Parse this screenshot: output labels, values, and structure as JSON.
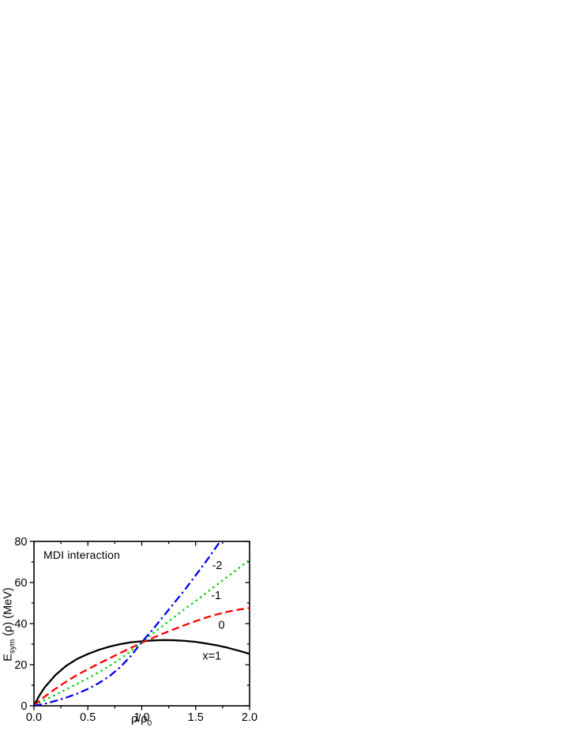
{
  "page": {
    "background": "#ffffff"
  },
  "figure": {
    "title": "MDI interaction",
    "xlabel_main": "ρ/ρ",
    "xlabel_sub": "0",
    "ylabel_main": "E",
    "ylabel_sub": "sym",
    "ylabel_rest": " (ρ) (MeV)"
  },
  "chart_data": {
    "type": "line",
    "title": "MDI interaction",
    "xlabel": "ρ/ρ0",
    "ylabel": "Esym (ρ) (MeV)",
    "xlim": [
      0,
      2
    ],
    "ylim": [
      0,
      80
    ],
    "x_major_ticks": [
      0,
      0.5,
      1,
      1.5,
      2
    ],
    "x_tick_labels": [
      "0.0",
      "0.5",
      "1.0",
      "1.5",
      "2.0"
    ],
    "x_minor_ticks": [
      0.25,
      0.75,
      1.25,
      1.75
    ],
    "y_major_ticks": [
      0,
      20,
      40,
      60,
      80
    ],
    "y_tick_labels": [
      "0",
      "20",
      "40",
      "60",
      "80"
    ],
    "y_minor_ticks": [
      10,
      30,
      50,
      70
    ],
    "grid": false,
    "legend_position": "inline-curve-labels",
    "axis_color": "#000000",
    "series": [
      {
        "name": "x=1",
        "style": "solid",
        "color": "#000000",
        "x": [
          0,
          0.05,
          0.1,
          0.2,
          0.3,
          0.4,
          0.5,
          0.6,
          0.7,
          0.8,
          0.9,
          1.0,
          1.1,
          1.2,
          1.3,
          1.4,
          1.5,
          1.6,
          1.7,
          1.8,
          1.9,
          2.0
        ],
        "y": [
          0,
          5,
          9,
          15,
          19.5,
          22.8,
          25.2,
          27.2,
          28.8,
          30.0,
          30.9,
          31.4,
          31.8,
          32.0,
          31.9,
          31.6,
          31.1,
          30.3,
          29.4,
          28.2,
          26.8,
          25.3
        ]
      },
      {
        "name": "x=0",
        "style": "dashed",
        "color": "#ff0000",
        "x": [
          0,
          0.05,
          0.1,
          0.2,
          0.3,
          0.4,
          0.5,
          0.6,
          0.7,
          0.8,
          0.9,
          1.0,
          1.1,
          1.2,
          1.3,
          1.4,
          1.5,
          1.6,
          1.7,
          1.8,
          1.9,
          2.0
        ],
        "y": [
          0,
          2.4,
          4.5,
          8.3,
          11.8,
          15.0,
          17.8,
          20.5,
          23.1,
          25.7,
          28.2,
          30.7,
          33.0,
          35.2,
          37.3,
          39.3,
          41.2,
          43.0,
          44.5,
          45.8,
          46.8,
          47.6
        ]
      },
      {
        "name": "x=-1",
        "style": "dotted",
        "color": "#00d000",
        "x": [
          0,
          0.05,
          0.1,
          0.2,
          0.3,
          0.4,
          0.5,
          0.6,
          0.7,
          0.8,
          0.9,
          1.0,
          1.1,
          1.2,
          1.3,
          1.4,
          1.5,
          1.6,
          1.7,
          1.8,
          1.9,
          2.0
        ],
        "y": [
          0,
          1.4,
          2.8,
          5.4,
          8.0,
          10.7,
          13.4,
          16.3,
          19.4,
          22.8,
          26.7,
          31.0,
          35.1,
          39.1,
          43.1,
          47.1,
          51.0,
          55.0,
          59.0,
          63.0,
          67.0,
          71.0
        ]
      },
      {
        "name": "x=-2",
        "style": "dashdot",
        "color": "#0000ee",
        "x": [
          0,
          0.05,
          0.1,
          0.2,
          0.3,
          0.4,
          0.5,
          0.6,
          0.7,
          0.8,
          0.9,
          1.0,
          1.1,
          1.2,
          1.3,
          1.4,
          1.5,
          1.6,
          1.7,
          1.8
        ],
        "y": [
          0,
          0.45,
          1.0,
          2.4,
          4.0,
          5.9,
          8.2,
          11.0,
          14.4,
          18.8,
          24.3,
          31.0,
          37.0,
          43.5,
          50.0,
          56.5,
          63.5,
          70.5,
          78.0,
          85.5
        ]
      }
    ],
    "annotations": [
      {
        "text": "-2",
        "x": 1.7,
        "y": 68.5
      },
      {
        "text": "-1",
        "x": 1.69,
        "y": 54.0
      },
      {
        "text": "0",
        "x": 1.74,
        "y": 39.5
      },
      {
        "text": "x=1",
        "x": 1.65,
        "y": 24.5
      }
    ]
  }
}
